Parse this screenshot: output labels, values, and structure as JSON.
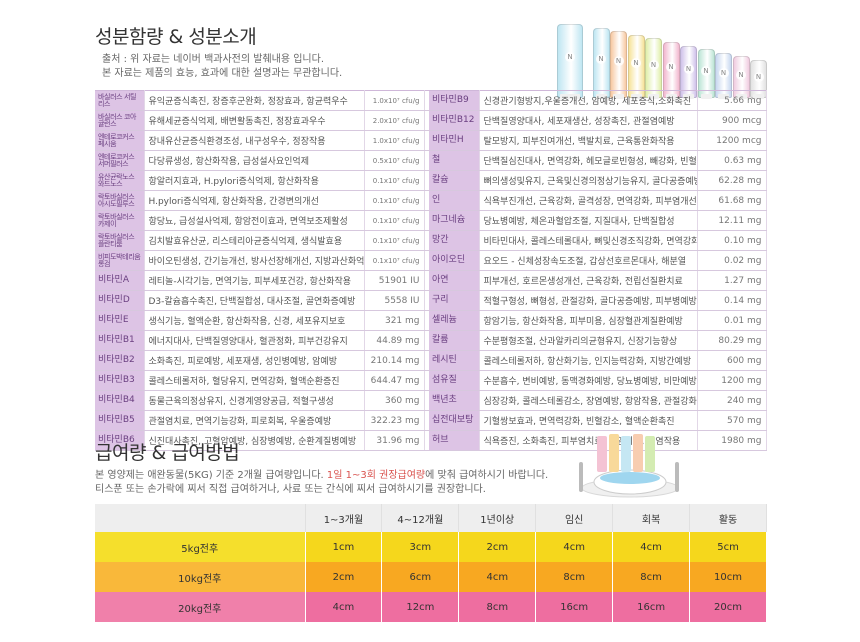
{
  "section1": {
    "title": "성분함량 & 성분소개",
    "note1": "출처 : 위 자료는 네이버 백과사전의 발췌내용 입니다.",
    "note2": "본 자료는 제품의 효능, 효과에 대한 설명과는 무관합니다."
  },
  "ingredients": [
    {
      "l": {
        "name": "바실러스 서틸리스",
        "effect": "유익균증식촉진, 장증후군완화, 정장효과, 항균력우수",
        "amount": "1.0x10⁷ cfu/g",
        "small": true
      },
      "r": {
        "name": "비타민B9",
        "effect": "신경관기형방지,우울증개선, 암예방, 세포증식,소화촉진",
        "amount": "5.66 mg"
      }
    },
    {
      "l": {
        "name": "바실러스 코아귤런스",
        "effect": "유해세균증식억제, 배변활동촉진, 정장효과우수",
        "amount": "2.0x10⁷ cfu/g",
        "small": true
      },
      "r": {
        "name": "비타민B12",
        "effect": "단백질영양대사, 세포재생산, 성장촉진, 관절염예방",
        "amount": "900 mcg"
      }
    },
    {
      "l": {
        "name": "엔테로코커스 페시움",
        "effect": "장내유산균증식환경조성, 내구성우수, 정장작용",
        "amount": "1.0x10⁷ cfu/g",
        "small": true
      },
      "r": {
        "name": "비타민H",
        "effect": "탈모방지, 피부진여개선, 백발치료, 근육통완화작용",
        "amount": "1200 mcg"
      }
    },
    {
      "l": {
        "name": "엔테로코커스 서머필러스",
        "effect": "다당류생성, 항산화작용, 급성설사요인억제",
        "amount": "0.5x10⁷ cfu/g",
        "small": true
      },
      "r": {
        "name": "철",
        "effect": "단백질심진대사, 면역강화, 헤모글로빈형성, 빼강화, 빈혈예방",
        "amount": "0.63 mg"
      }
    },
    {
      "l": {
        "name": "유산균락노스 와드노스",
        "effect": "항알러지효과, H.pylori증식억제, 항산화작용",
        "amount": "0.1x10⁷ cfu/g",
        "small": true
      },
      "r": {
        "name": "칼슘",
        "effect": "뼈의생성및유지, 근육및신경의정상기능유지, 골다공증예방",
        "amount": "62.28 mg"
      }
    },
    {
      "l": {
        "name": "락토바실러스 아시도필루스",
        "effect": "H.pylori증식억제, 항산화작용, 간경변의개선",
        "amount": "0.1x10⁷ cfu/g",
        "small": true
      },
      "r": {
        "name": "인",
        "effect": "식욕부진개선, 근육강화, 골격성장, 면역강화, 피부염개선",
        "amount": "61.68 mg"
      }
    },
    {
      "l": {
        "name": "락토바실러스 카제이",
        "effect": "항당뇨, 급성설사억제, 항암전이효과, 면역보조제활성",
        "amount": "0.1x10⁷ cfu/g",
        "small": true
      },
      "r": {
        "name": "마그네슘",
        "effect": "당뇨병예방, 체온과혈압조절, 지질대사, 단백질합성",
        "amount": "12.11 mg"
      }
    },
    {
      "l": {
        "name": "락토바실러스 플란티룸",
        "effect": "김치발효유산균, 리스테리아균증식억제, 생식발효용",
        "amount": "0.1x10⁷ cfu/g",
        "small": true
      },
      "r": {
        "name": "망간",
        "effect": "비타민대사, 콜레스테롤대사, 뼈및신경조직강화, 면역강화",
        "amount": "0.10 mg"
      }
    },
    {
      "l": {
        "name": "비피도박테리움 롱검",
        "effect": "바이오틴생성, 간기능개선, 방사선장해개선, 지방과산화억제",
        "amount": "0.1x10⁷ cfu/g",
        "small": true
      },
      "r": {
        "name": "아이오딘",
        "effect": "요오드 - 신체성장속도조절, 갑상선호르몬대사, 해분열",
        "amount": "0.02 mg"
      }
    },
    {
      "l": {
        "name": "비타민A",
        "effect": "레티놀-시각기능, 면역기능, 피부세포건강, 항산화작용",
        "amount": "51901 IU",
        "small": false
      },
      "r": {
        "name": "아연",
        "effect": "피부개선, 호르몬생성개선, 근육강화, 전립선질환치료",
        "amount": "1.27 mg"
      }
    },
    {
      "l": {
        "name": "비타민D",
        "effect": "D3-칼슘흡수촉진, 단백질합성, 대사조절, 골연화증예방",
        "amount": "5558 IU",
        "small": false
      },
      "r": {
        "name": "구리",
        "effect": "적혈구형성, 뼈형성, 관절강화, 골다공증예방, 피부병예방",
        "amount": "0.14 mg"
      }
    },
    {
      "l": {
        "name": "비타민E",
        "effect": "생식기능, 혈액순환, 항산화작용, 신경, 세포유지보호",
        "amount": "321 mg",
        "small": false
      },
      "r": {
        "name": "셀레늄",
        "effect": "항암기능, 항산화작용, 피부미용, 심장혈관계질환예방",
        "amount": "0.01 mg"
      }
    },
    {
      "l": {
        "name": "비타민B1",
        "effect": "에너지대사, 단백질영양대사, 혈관정화, 피부건강유지",
        "amount": "44.89 mg",
        "small": false
      },
      "r": {
        "name": "칼륨",
        "effect": "수분평형조절, 산과알카리의균형유지, 신장기능향상",
        "amount": "80.29 mg"
      }
    },
    {
      "l": {
        "name": "비타민B2",
        "effect": "소화촉진, 피로예방, 세포재생, 성인병예방, 암예방",
        "amount": "210.14 mg",
        "small": false
      },
      "r": {
        "name": "레시틴",
        "effect": "콜레스테롤저하, 항산화기능, 인지능력강화, 지방간예방",
        "amount": "600 mg"
      }
    },
    {
      "l": {
        "name": "비타민B3",
        "effect": "콜레스테롤저하, 혈당유지, 면역강화, 혈액순환증진",
        "amount": "644.47 mg",
        "small": false
      },
      "r": {
        "name": "섬유질",
        "effect": "수분흡수, 변비예방, 동맥경화예방, 당뇨병예방, 비만예방",
        "amount": "1200 mg"
      }
    },
    {
      "l": {
        "name": "비타민B4",
        "effect": "동물근육의정상유지, 신경계영양공급, 적혈구생성",
        "amount": "360 mg",
        "small": false
      },
      "r": {
        "name": "백년초",
        "effect": "심장강화, 콜레스테롤감소, 장염예방, 항암작용, 관절강화",
        "amount": "240 mg"
      }
    },
    {
      "l": {
        "name": "비타민B5",
        "effect": "관절염치료, 면역기능강화, 피로회복, 우울증예방",
        "amount": "322.23 mg",
        "small": false
      },
      "r": {
        "name": "십전대보탕",
        "effect": "기혈쌍보효과, 면역력강화, 빈혈감소, 혈액순환촉진",
        "amount": "570 mg"
      }
    },
    {
      "l": {
        "name": "비타민B6",
        "effect": "신진대사촉진, 고혈압예방, 심장병예방, 순환계질병예방",
        "amount": "31.96 mg",
        "small": false
      },
      "r": {
        "name": "허브",
        "effect": "식욕증진, 소화촉진, 피부염치료, 비염치료, 항염작용",
        "amount": "1980 mg"
      }
    }
  ],
  "section2": {
    "title": "급여량 & 급여방법",
    "note1_a": "본 영양제는 애완동물(5KG) 기준 2개월 급여량입니다. ",
    "note1_hl": "1일 1~3회 권장급여량",
    "note1_b": "에 맞춰 급여하시기 바랍니다.",
    "note2": "티스푼 또는 손가락에 찌서 직접 급여하거나, 사료 또는 간식에 찌서 급여하시기를 권장합니다."
  },
  "dosage": {
    "headers": [
      "1~3개월",
      "4~12개월",
      "1년이상",
      "임신",
      "회복",
      "활동"
    ],
    "rows": [
      {
        "label": "5kg전후",
        "values": [
          "1cm",
          "3cm",
          "2cm",
          "4cm",
          "4cm",
          "5cm"
        ]
      },
      {
        "label": "10kg전후",
        "values": [
          "2cm",
          "6cm",
          "4cm",
          "8cm",
          "8cm",
          "10cm"
        ]
      },
      {
        "label": "20kg전후",
        "values": [
          "4cm",
          "12cm",
          "8cm",
          "16cm",
          "16cm",
          "20cm"
        ]
      }
    ]
  },
  "colors": {
    "name_bg": "#ddc4e5",
    "row_5kg": "#f5d71c",
    "row_10kg": "#f8a821",
    "row_20kg": "#ee6ea0"
  },
  "product": {
    "tube_colors": [
      "#bfe6f2",
      "#bfe6f2",
      "#f7c9a2",
      "#f6e39a",
      "#e0efaa",
      "#f2b8cf",
      "#d0c2ea",
      "#bde5d6",
      "#c8d8f0",
      "#f0cce0",
      "#e2e2e2"
    ],
    "logo_letter": "N"
  }
}
